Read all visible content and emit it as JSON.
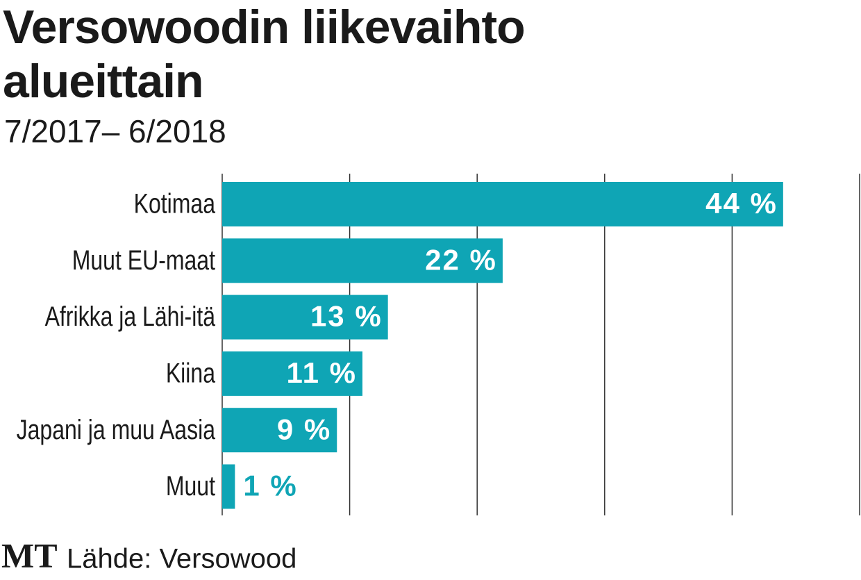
{
  "chart_data": {
    "type": "bar",
    "orientation": "horizontal",
    "title": "Versowoodin liikevaihto alueittain",
    "subtitle": "7/2017– 6/2018",
    "categories": [
      "Kotimaa",
      "Muut EU-maat",
      "Afrikka ja Lähi-itä",
      "Kiina",
      "Japani ja muu Aasia",
      "Muut"
    ],
    "values": [
      44,
      22,
      13,
      11,
      9,
      1
    ],
    "value_labels": [
      "44 %",
      "22 %",
      "13 %",
      "11 %",
      "9 %",
      "1 %"
    ],
    "color": "#0fa5b5",
    "xlim": [
      0,
      50
    ],
    "xticks": [
      0,
      10,
      20,
      30,
      40,
      50
    ],
    "grid": true,
    "logo": "MT",
    "source": "Lähde: Versowood"
  }
}
